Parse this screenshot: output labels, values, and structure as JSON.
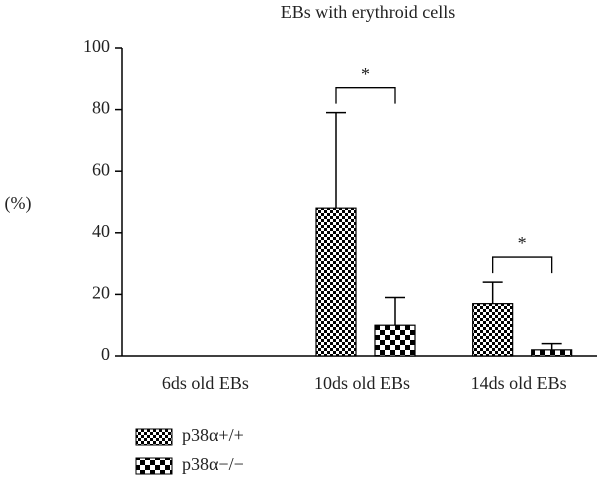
{
  "chart_data": {
    "type": "bar",
    "title": "EBs with erythroid cells",
    "y_label": "(%)",
    "categories": [
      "6ds old EBs",
      "10ds old EBs",
      "14ds old EBs"
    ],
    "series": [
      {
        "name": "p38α+/+",
        "color": "#000000",
        "pattern": "fine-check",
        "values": [
          0,
          48,
          17
        ],
        "errors": [
          0,
          31,
          7
        ]
      },
      {
        "name": "p38α−/−",
        "color": "#000000",
        "pattern": "coarse-check",
        "values": [
          0,
          10,
          2
        ],
        "errors": [
          0,
          9,
          2
        ]
      }
    ],
    "annotations": [
      "*",
      "*"
    ],
    "ylim": [
      0,
      100
    ],
    "yticks": [
      0,
      20,
      40,
      60,
      80,
      100
    ],
    "grid": false
  }
}
